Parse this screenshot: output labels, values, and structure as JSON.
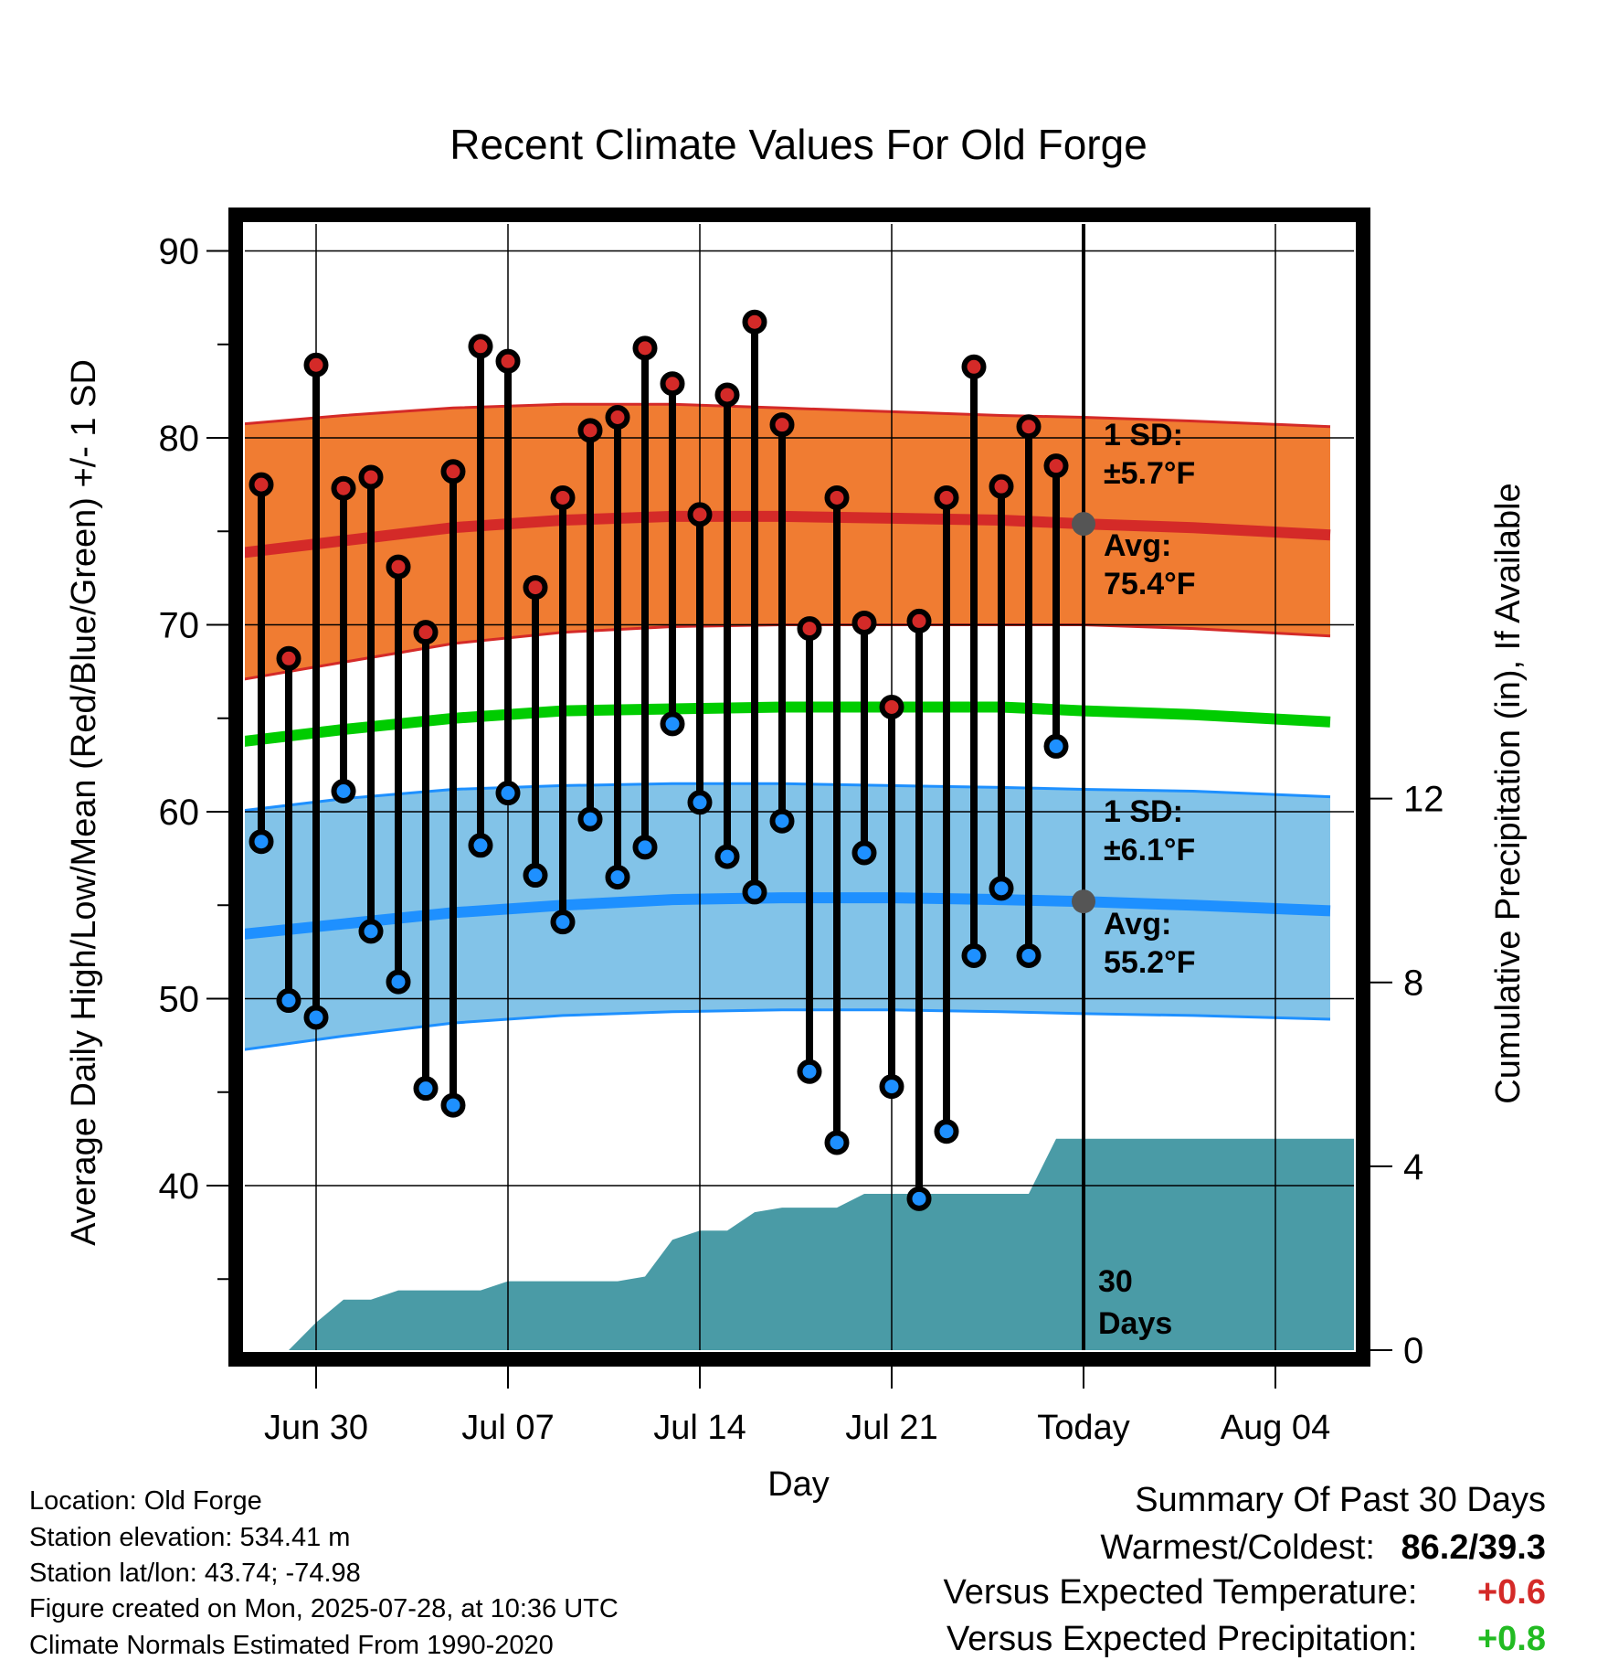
{
  "chart_data": {
    "type": "line",
    "title": "Recent Climate Values For Old Forge",
    "xlabel": "Day",
    "ylabel_left": "Average Daily High/Low/Mean (Red/Blue/Green) +/- 1 SD",
    "ylabel_right": "Cumulative Precipitation (in), If Available",
    "y_left_ticks": [
      "40",
      "50",
      "60",
      "70",
      "80",
      "90"
    ],
    "y_right_ticks": [
      "0",
      "4",
      "8",
      "12"
    ],
    "x_tick_labels": [
      "Jun 30",
      "Jul 07",
      "Jul 14",
      "Jul 21",
      "Today",
      "Aug 04"
    ],
    "ylim_left": [
      31.5,
      92
    ],
    "ylim_right": [
      0,
      24.5
    ],
    "grid": true,
    "days": [
      "Jun 28",
      "Jun 29",
      "Jun 30",
      "Jul 01",
      "Jul 02",
      "Jul 03",
      "Jul 04",
      "Jul 05",
      "Jul 06",
      "Jul 07",
      "Jul 08",
      "Jul 09",
      "Jul 10",
      "Jul 11",
      "Jul 12",
      "Jul 13",
      "Jul 14",
      "Jul 15",
      "Jul 16",
      "Jul 17",
      "Jul 18",
      "Jul 19",
      "Jul 20",
      "Jul 21",
      "Jul 22",
      "Jul 23",
      "Jul 24",
      "Jul 25",
      "Jul 26",
      "Jul 27"
    ],
    "observed_high": [
      77.5,
      68.2,
      83.9,
      77.3,
      77.9,
      73.1,
      69.6,
      78.2,
      84.9,
      84.1,
      72.0,
      76.8,
      80.4,
      81.1,
      84.8,
      82.9,
      75.9,
      82.3,
      86.2,
      80.7,
      69.8,
      76.8,
      70.1,
      65.6,
      70.2,
      76.8,
      83.8,
      77.4,
      80.6,
      78.5
    ],
    "observed_low": [
      58.4,
      49.9,
      49.0,
      61.1,
      53.6,
      50.9,
      45.2,
      44.3,
      58.2,
      61.0,
      56.6,
      54.1,
      59.6,
      56.5,
      58.1,
      64.7,
      60.5,
      57.6,
      55.7,
      59.5,
      46.1,
      42.3,
      57.8,
      45.3,
      39.3,
      42.9,
      52.3,
      55.9,
      52.3,
      63.5
    ],
    "normals": {
      "day_offsets": [
        -31,
        -27,
        -23,
        -19,
        -15,
        -11,
        -7,
        -3,
        0,
        4,
        9
      ],
      "high_avg": [
        73.8,
        74.5,
        75.2,
        75.6,
        75.8,
        75.8,
        75.7,
        75.6,
        75.4,
        75.2,
        74.8
      ],
      "high_upper": [
        80.7,
        81.2,
        81.6,
        81.8,
        81.8,
        81.6,
        81.4,
        81.2,
        81.1,
        80.9,
        80.6
      ],
      "high_lower": [
        67.0,
        68.0,
        69.0,
        69.6,
        69.9,
        70.0,
        70.0,
        70.0,
        70.0,
        69.8,
        69.4
      ],
      "mean_avg": [
        63.7,
        64.4,
        65.0,
        65.4,
        65.5,
        65.6,
        65.6,
        65.6,
        65.4,
        65.2,
        64.8
      ],
      "low_avg": [
        53.4,
        54.0,
        54.6,
        55.0,
        55.3,
        55.4,
        55.4,
        55.3,
        55.2,
        55.0,
        54.7
      ],
      "low_upper": [
        60.0,
        60.7,
        61.2,
        61.4,
        61.5,
        61.5,
        61.4,
        61.3,
        61.2,
        61.1,
        60.8
      ],
      "low_lower": [
        47.2,
        48.0,
        48.7,
        49.1,
        49.3,
        49.4,
        49.4,
        49.3,
        49.2,
        49.1,
        48.9
      ]
    },
    "cumulative_precip_in": [
      0.0,
      0.0,
      0.6,
      1.1,
      1.1,
      1.3,
      1.3,
      1.3,
      1.3,
      1.5,
      1.5,
      1.5,
      1.5,
      1.5,
      1.6,
      2.4,
      2.6,
      2.6,
      3.0,
      3.1,
      3.1,
      3.1,
      3.4,
      3.4,
      3.4,
      3.4,
      3.4,
      3.4,
      3.4,
      4.6,
      4.6,
      4.6,
      4.6,
      4.6,
      4.6,
      4.6,
      4.6,
      4.6,
      4.6,
      4.6
    ],
    "annotations": {
      "high_sd_label": "1 SD:",
      "high_sd_value": "±5.7°F",
      "high_avg_label": "Avg:",
      "high_avg_value": "75.4°F",
      "low_sd_label": "1 SD:",
      "low_sd_value": "±6.1°F",
      "low_avg_label": "Avg:",
      "low_avg_value": "55.2°F",
      "today_label_1": "30",
      "today_label_2": "Days"
    },
    "colors": {
      "high_band": "#f07c32",
      "high_line": "#d42a28",
      "mean_line": "#00cc00",
      "low_band": "#82c3e8",
      "low_line": "#1e90ff",
      "precip_fill": "#4a9ba6",
      "high_marker": "#d42a28",
      "low_marker": "#1e90ff",
      "annotation_text": "#555555"
    }
  },
  "info": {
    "location": "Location: Old Forge",
    "elevation": "Station elevation: 534.41 m",
    "latlon": "Station lat/lon: 43.74; -74.98",
    "created": "Figure created on Mon, 2025-07-28, at 10:36 UTC",
    "normals": "Climate Normals Estimated From 1990-2020"
  },
  "summary": {
    "title": "Summary Of Past 30 Days",
    "warm_cold_label": "Warmest/Coldest:",
    "warm_cold_value": "86.2/39.3",
    "temp_label": "Versus Expected Temperature:",
    "temp_value": "+0.6",
    "temp_color": "#d42a28",
    "precip_label": "Versus Expected Precipitation:",
    "precip_value": "+0.8",
    "precip_color": "#22bb22"
  }
}
